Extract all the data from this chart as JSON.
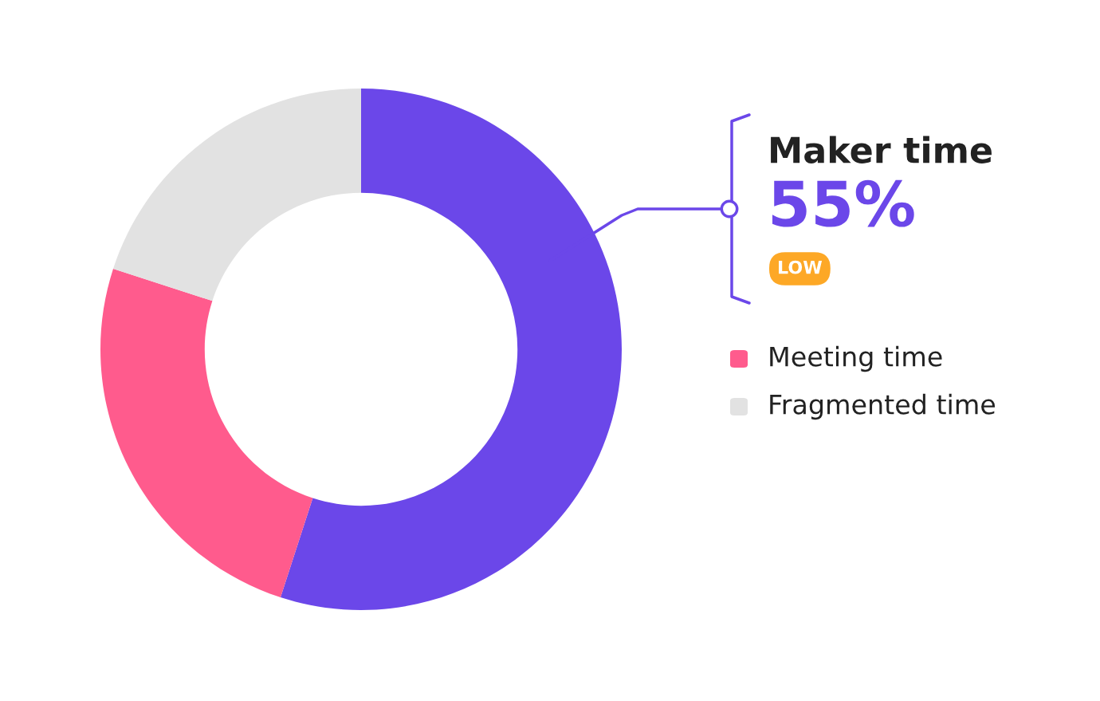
{
  "chart_data": {
    "type": "donut",
    "categories": [
      "Maker time",
      "Meeting time",
      "Fragmented time"
    ],
    "values": [
      55,
      25,
      20
    ],
    "colors": [
      "#6b47e9",
      "#ff5b8d",
      "#e2e2e2"
    ],
    "value_labels": [
      "55%",
      null,
      null
    ],
    "annotations": [
      "LOW"
    ],
    "legend": "right"
  }
}
